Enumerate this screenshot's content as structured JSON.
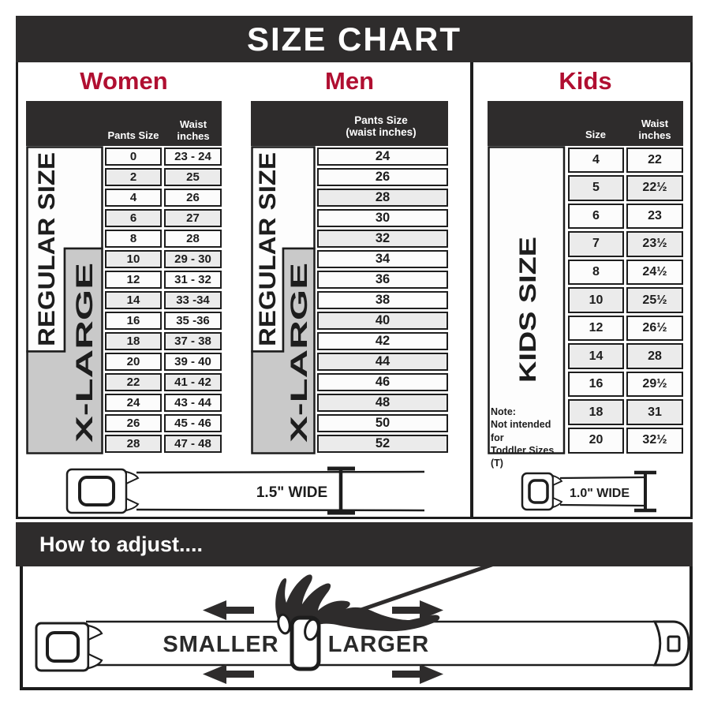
{
  "title": "SIZE CHART",
  "women": {
    "title": "Women",
    "pants_header": "Pants Size",
    "waist_header": "Waist\ninches",
    "regular_label": "REGULAR SIZE",
    "xlarge_label": "X-LARGE",
    "rows": [
      {
        "size": "0",
        "waist": "23 - 24"
      },
      {
        "size": "2",
        "waist": "25"
      },
      {
        "size": "4",
        "waist": "26"
      },
      {
        "size": "6",
        "waist": "27"
      },
      {
        "size": "8",
        "waist": "28"
      },
      {
        "size": "10",
        "waist": "29 - 30"
      },
      {
        "size": "12",
        "waist": "31 - 32"
      },
      {
        "size": "14",
        "waist": "33 -34"
      },
      {
        "size": "16",
        "waist": "35 -36"
      },
      {
        "size": "18",
        "waist": "37 - 38"
      },
      {
        "size": "20",
        "waist": "39 - 40"
      },
      {
        "size": "22",
        "waist": "41 - 42"
      },
      {
        "size": "24",
        "waist": "43 - 44"
      },
      {
        "size": "26",
        "waist": "45 - 46"
      },
      {
        "size": "28",
        "waist": "47 - 48"
      }
    ],
    "belt_width_label": "1.5\" WIDE"
  },
  "men": {
    "title": "Men",
    "header": "Pants Size\n(waist inches)",
    "regular_label": "REGULAR SIZE",
    "xlarge_label": "X-LARGE",
    "rows": [
      "24",
      "26",
      "28",
      "30",
      "32",
      "34",
      "36",
      "38",
      "40",
      "42",
      "44",
      "46",
      "48",
      "50",
      "52"
    ]
  },
  "kids": {
    "title": "Kids",
    "size_header": "Size",
    "waist_header": "Waist\ninches",
    "label": "KIDS SIZE",
    "note": "Note:\nNot intended for\nToddler Sizes (T)",
    "rows": [
      {
        "size": "4",
        "waist": "22"
      },
      {
        "size": "5",
        "waist": "22½"
      },
      {
        "size": "6",
        "waist": "23"
      },
      {
        "size": "7",
        "waist": "23½"
      },
      {
        "size": "8",
        "waist": "24½"
      },
      {
        "size": "10",
        "waist": "25½"
      },
      {
        "size": "12",
        "waist": "26½"
      },
      {
        "size": "14",
        "waist": "28"
      },
      {
        "size": "16",
        "waist": "29½"
      },
      {
        "size": "18",
        "waist": "31"
      },
      {
        "size": "20",
        "waist": "32½"
      }
    ],
    "belt_width_label": "1.0\" WIDE"
  },
  "adjust": {
    "title": "How to adjust....",
    "smaller_label": "SMALLER",
    "larger_label": "LARGER"
  },
  "colors": {
    "dark": "#2e2c2c",
    "accent_red": "#b00f31",
    "gray_box": "#c9c9c9"
  }
}
